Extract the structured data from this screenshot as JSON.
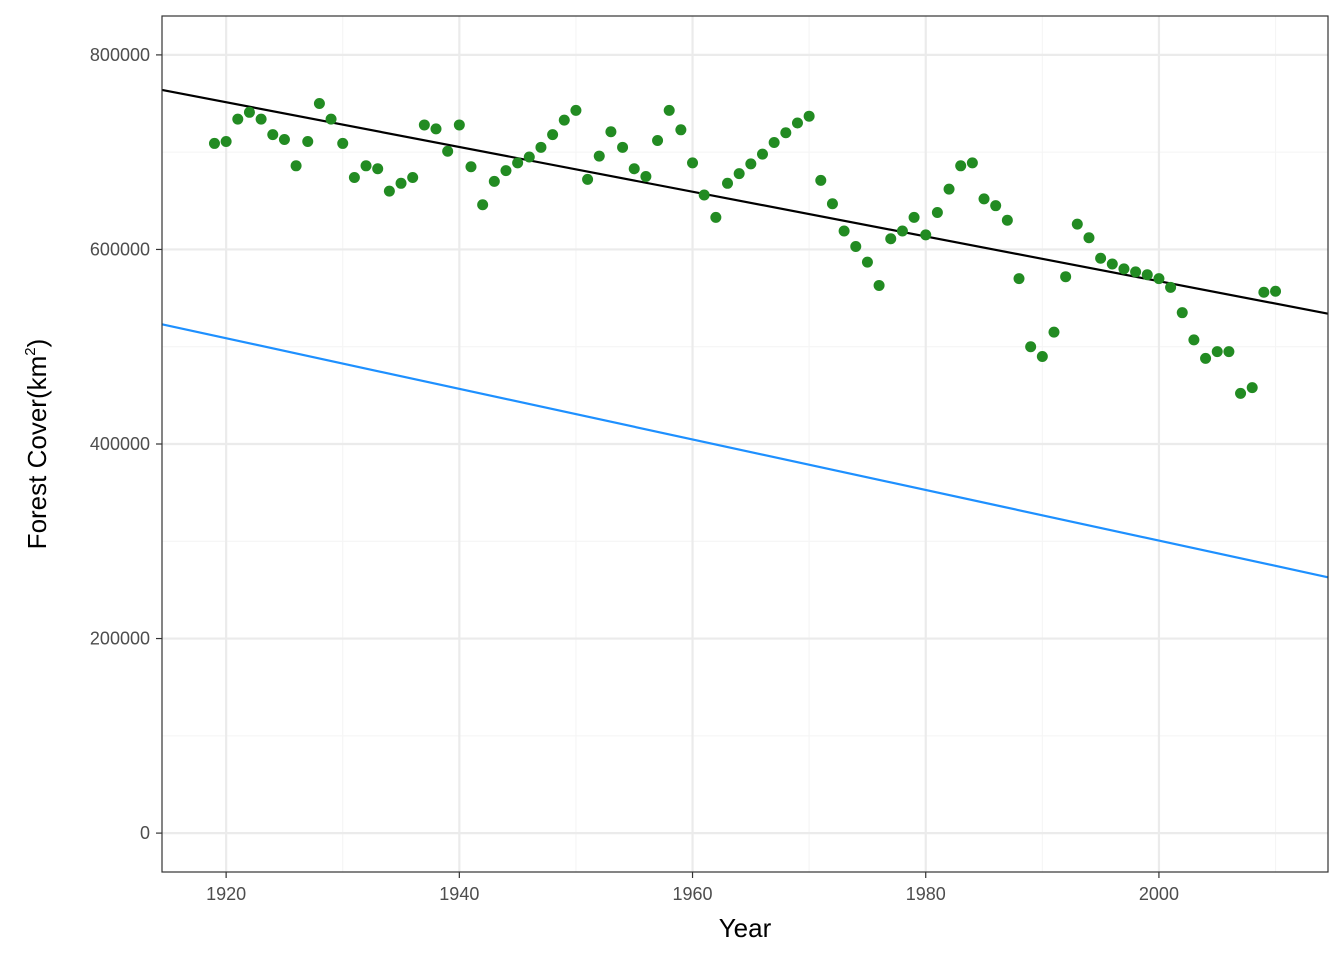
{
  "chart_data": {
    "type": "scatter",
    "title": "",
    "xlabel": "Year",
    "ylabel": {
      "prefix": "Forest Cover",
      "unit": "km",
      "unit_exponent": "2"
    },
    "xlim": [
      1914.5,
      2014.5
    ],
    "ylim": [
      -40000,
      840000
    ],
    "x_ticks": [
      1920,
      1940,
      1960,
      1980,
      2000
    ],
    "y_ticks": [
      0,
      200000,
      400000,
      600000,
      800000
    ],
    "x_minor_ticks": [
      1930,
      1950,
      1970,
      1990,
      2010
    ],
    "y_minor_ticks": [
      100000,
      300000,
      500000,
      700000
    ],
    "grid": true,
    "legend": "none",
    "colors": {
      "points": "#228B22",
      "fit_line": "#000000",
      "reference_line": "#1E90FF",
      "grid_major": "#EBEBEB",
      "grid_minor": "#F5F5F5",
      "panel_border": "#333333"
    },
    "points": {
      "x": [
        1919,
        1920,
        1921,
        1922,
        1923,
        1924,
        1925,
        1926,
        1927,
        1928,
        1929,
        1930,
        1931,
        1932,
        1933,
        1934,
        1935,
        1936,
        1937,
        1938,
        1939,
        1940,
        1941,
        1942,
        1943,
        1944,
        1945,
        1946,
        1947,
        1948,
        1949,
        1950,
        1951,
        1952,
        1953,
        1954,
        1955,
        1956,
        1957,
        1958,
        1959,
        1960,
        1961,
        1962,
        1963,
        1964,
        1965,
        1966,
        1967,
        1968,
        1969,
        1970,
        1971,
        1972,
        1973,
        1974,
        1975,
        1976,
        1977,
        1978,
        1979,
        1980,
        1981,
        1982,
        1983,
        1984,
        1985,
        1986,
        1987,
        1988,
        1989,
        1990,
        1991,
        1992,
        1993,
        1994,
        1995,
        1996,
        1997,
        1998,
        1999,
        2000,
        2001,
        2002,
        2003,
        2004,
        2005,
        2006,
        2007,
        2008,
        2009,
        2010
      ],
      "y": [
        709000,
        711000,
        734000,
        741000,
        734000,
        718000,
        713000,
        686000,
        711000,
        750000,
        734000,
        709000,
        674000,
        686000,
        683000,
        660000,
        668000,
        674000,
        728000,
        724000,
        701000,
        728000,
        685000,
        646000,
        670000,
        681000,
        689000,
        695000,
        705000,
        718000,
        733000,
        743000,
        672000,
        696000,
        721000,
        705000,
        683000,
        675000,
        712000,
        743000,
        723000,
        689000,
        656000,
        633000,
        668000,
        678000,
        688000,
        698000,
        710000,
        720000,
        730000,
        737000,
        671000,
        647000,
        619000,
        603000,
        587000,
        563000,
        611000,
        619000,
        633000,
        615000,
        638000,
        662000,
        686000,
        689000,
        652000,
        645000,
        630000,
        570000,
        500000,
        490000,
        515000,
        572000,
        626000,
        612000,
        591000,
        585000,
        580000,
        577000,
        574000,
        570000,
        561000,
        535000,
        507000,
        488000,
        495000,
        495000,
        452000,
        458000,
        556000,
        557000
      ]
    },
    "fit_line": {
      "x": [
        1914.5,
        2014.5
      ],
      "y": [
        764000,
        534000
      ]
    },
    "reference_line": {
      "x": [
        1914.5,
        2014.5
      ],
      "y": [
        523000,
        263000
      ]
    }
  }
}
